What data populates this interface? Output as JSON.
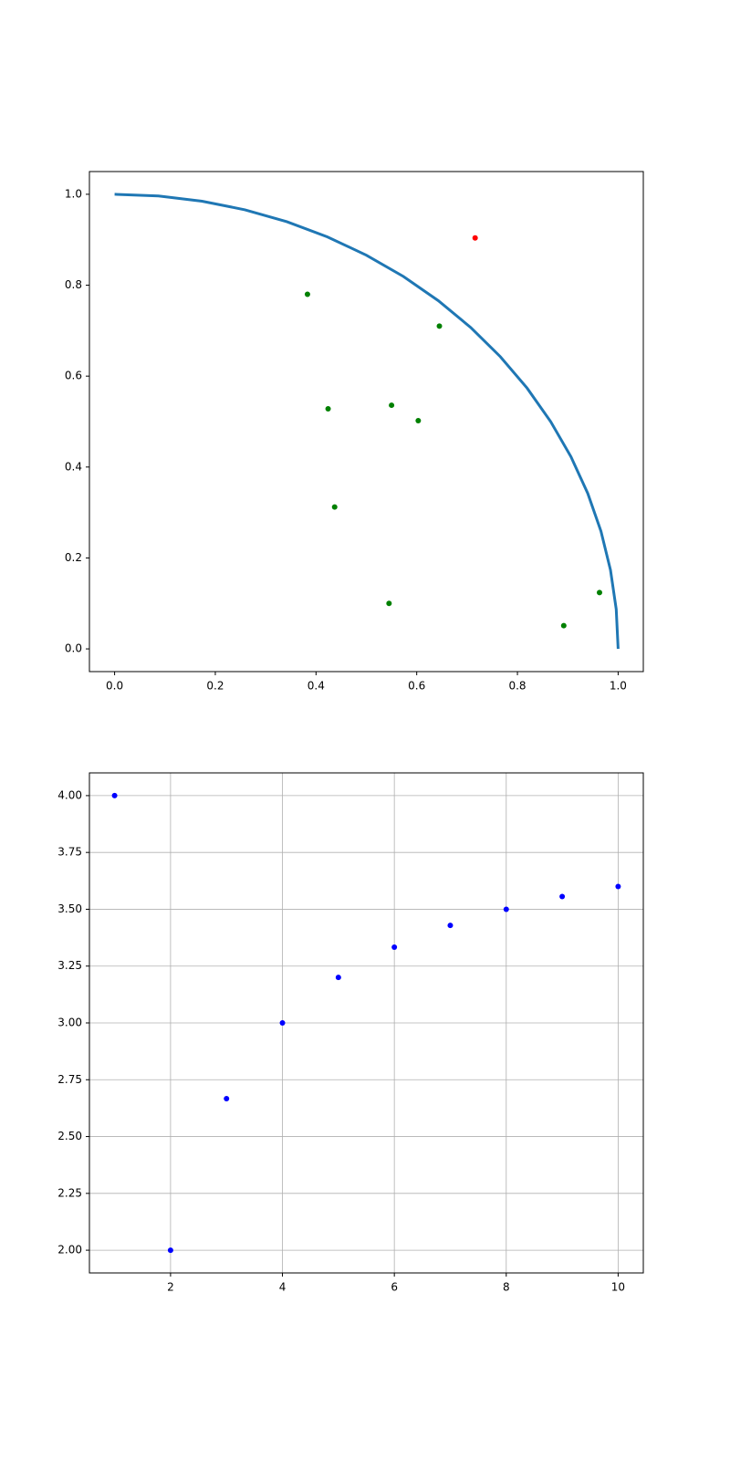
{
  "chart_data": [
    {
      "type": "scatter",
      "grid": false,
      "xlim": [
        -0.05,
        1.05
      ],
      "ylim": [
        -0.05,
        1.05
      ],
      "xticks": [
        {
          "value": 0,
          "label": "0.0"
        },
        {
          "value": 0.2,
          "label": "0.2"
        },
        {
          "value": 0.4,
          "label": "0.4"
        },
        {
          "value": 0.6,
          "label": "0.6"
        },
        {
          "value": 0.8,
          "label": "0.8"
        },
        {
          "value": 1,
          "label": "1.0"
        }
      ],
      "yticks": [
        {
          "value": 0,
          "label": "0.0"
        },
        {
          "value": 0.2,
          "label": "0.2"
        },
        {
          "value": 0.4,
          "label": "0.4"
        },
        {
          "value": 0.6,
          "label": "0.6"
        },
        {
          "value": 0.8,
          "label": "0.8"
        },
        {
          "value": 1,
          "label": "1.0"
        }
      ],
      "series": [
        {
          "type": "line",
          "color": "#1f77b4",
          "x": [
            0,
            0.0872,
            0.1736,
            0.2588,
            0.342,
            0.4226,
            0.5,
            0.5736,
            0.6428,
            0.7071,
            0.766,
            0.8192,
            0.866,
            0.9063,
            0.9397,
            0.9659,
            0.9848,
            0.9962,
            1
          ],
          "values": [
            1,
            0.9962,
            0.9848,
            0.9659,
            0.9397,
            0.9063,
            0.866,
            0.8192,
            0.766,
            0.7071,
            0.6428,
            0.5736,
            0.5,
            0.4226,
            0.342,
            0.2588,
            0.1736,
            0.0872,
            0
          ]
        },
        {
          "type": "scatter",
          "color": "#008000",
          "x": [
            0.383,
            0.645,
            0.424,
            0.55,
            0.603,
            0.437,
            0.545,
            0.892,
            0.963
          ],
          "values": [
            0.78,
            0.71,
            0.528,
            0.536,
            0.502,
            0.312,
            0.1,
            0.051,
            0.124
          ]
        },
        {
          "type": "scatter",
          "color": "#ff0000",
          "x": [
            0.716
          ],
          "values": [
            0.904
          ]
        }
      ]
    },
    {
      "type": "scatter",
      "grid": true,
      "xlim": [
        0.55,
        10.45
      ],
      "ylim": [
        1.9,
        4.1
      ],
      "xticks": [
        2,
        4,
        6,
        8,
        10
      ],
      "yticks": [
        {
          "value": 2,
          "label": "2.00"
        },
        {
          "value": 2.25,
          "label": "2.25"
        },
        {
          "value": 2.5,
          "label": "2.50"
        },
        {
          "value": 2.75,
          "label": "2.75"
        },
        {
          "value": 3,
          "label": "3.00"
        },
        {
          "value": 3.25,
          "label": "3.25"
        },
        {
          "value": 3.5,
          "label": "3.50"
        },
        {
          "value": 3.75,
          "label": "3.75"
        },
        {
          "value": 4,
          "label": "4.00"
        }
      ],
      "series": [
        {
          "type": "scatter",
          "color": "#0000ff",
          "x": [
            1,
            2,
            3,
            4,
            5,
            6,
            7,
            8,
            9,
            10
          ],
          "values": [
            4,
            2,
            2.667,
            3,
            3.2,
            3.333,
            3.429,
            3.5,
            3.556,
            3.6
          ]
        }
      ]
    }
  ]
}
